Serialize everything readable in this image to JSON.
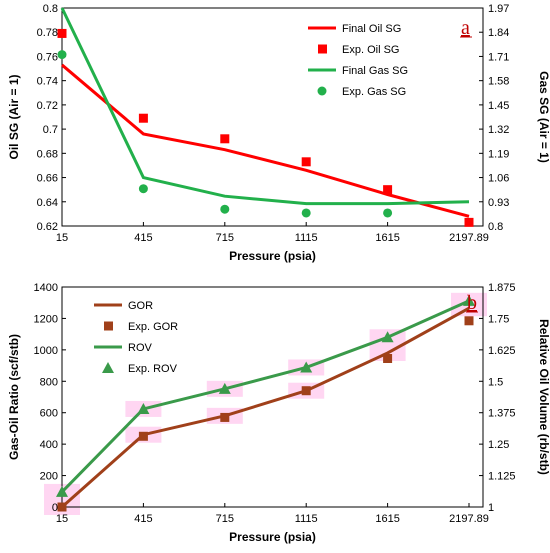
{
  "chart_data": [
    {
      "type": "line",
      "panel_label": "a",
      "categories": [
        "15",
        "415",
        "715",
        "1115",
        "1615",
        "2197.89"
      ],
      "xlabel": "Pressure (psia)",
      "ylabel": "Oil SG (Air = 1)",
      "y2label": "Gas SG (Air = 1)",
      "ylim": [
        0.62,
        0.8
      ],
      "y2lim": [
        0.8,
        1.97
      ],
      "yticks": [
        "0.62",
        "0.64",
        "0.66",
        "0.68",
        "0.7",
        "0.72",
        "0.74",
        "0.76",
        "0.78",
        "0.8"
      ],
      "y2ticks": [
        "0.8",
        "0.93",
        "1.06",
        "1.19",
        "1.32",
        "1.45",
        "1.58",
        "1.71",
        "1.84",
        "1.97"
      ],
      "grid": false,
      "legend_position": "top-right",
      "series": [
        {
          "name": "Final Oil SG",
          "axis": "left",
          "kind": "line",
          "color": "#ff0000",
          "values": [
            0.753,
            0.696,
            0.683,
            0.666,
            0.646,
            0.628
          ]
        },
        {
          "name": "Exp. Oil SG",
          "axis": "left",
          "kind": "marker-square",
          "color": "#ff0000",
          "values": [
            0.779,
            0.709,
            0.692,
            0.673,
            0.65,
            0.623
          ]
        },
        {
          "name": "Final Gas SG",
          "axis": "right",
          "kind": "line",
          "color": "#22b04b",
          "values": [
            1.97,
            1.06,
            0.96,
            0.92,
            0.92,
            0.93
          ]
        },
        {
          "name": "Exp. Gas SG",
          "axis": "right",
          "kind": "marker-circle",
          "color": "#22b04b",
          "values": [
            1.72,
            1.0,
            0.89,
            0.87,
            0.87,
            null
          ]
        }
      ]
    },
    {
      "type": "line",
      "panel_label": "b",
      "categories": [
        "15",
        "415",
        "715",
        "1115",
        "1615",
        "2197.89"
      ],
      "xlabel": "Pressure (psia)",
      "ylabel": "Gas-Oil Ratio (scf/stb)",
      "y2label": "Relative Oil Volume (rb/stb)",
      "ylim": [
        0,
        1400
      ],
      "y2lim": [
        1,
        1.875
      ],
      "yticks": [
        "0",
        "200",
        "400",
        "600",
        "800",
        "1000",
        "1200",
        "1400"
      ],
      "y2ticks": [
        "1",
        "1.125",
        "1.25",
        "1.375",
        "1.5",
        "1.625",
        "1.75",
        "1.875"
      ],
      "grid": false,
      "legend_position": "top-left",
      "series": [
        {
          "name": "GOR",
          "axis": "left",
          "kind": "line",
          "color": "#a0401a",
          "values": [
            0,
            460,
            580,
            740,
            980,
            1265
          ]
        },
        {
          "name": "Exp. GOR",
          "axis": "left",
          "kind": "marker-square",
          "color": "#a0401a",
          "values": [
            0,
            450,
            570,
            740,
            945,
            1185
          ]
        },
        {
          "name": "ROV",
          "axis": "right",
          "kind": "line",
          "color": "#3a9a4a",
          "values": [
            1.06,
            1.39,
            1.47,
            1.555,
            1.675,
            1.82
          ]
        },
        {
          "name": "Exp. ROV",
          "axis": "right",
          "kind": "marker-triangle",
          "color": "#3a9a4a",
          "values": [
            1.06,
            1.39,
            1.47,
            1.555,
            1.675,
            1.82
          ]
        }
      ]
    }
  ]
}
